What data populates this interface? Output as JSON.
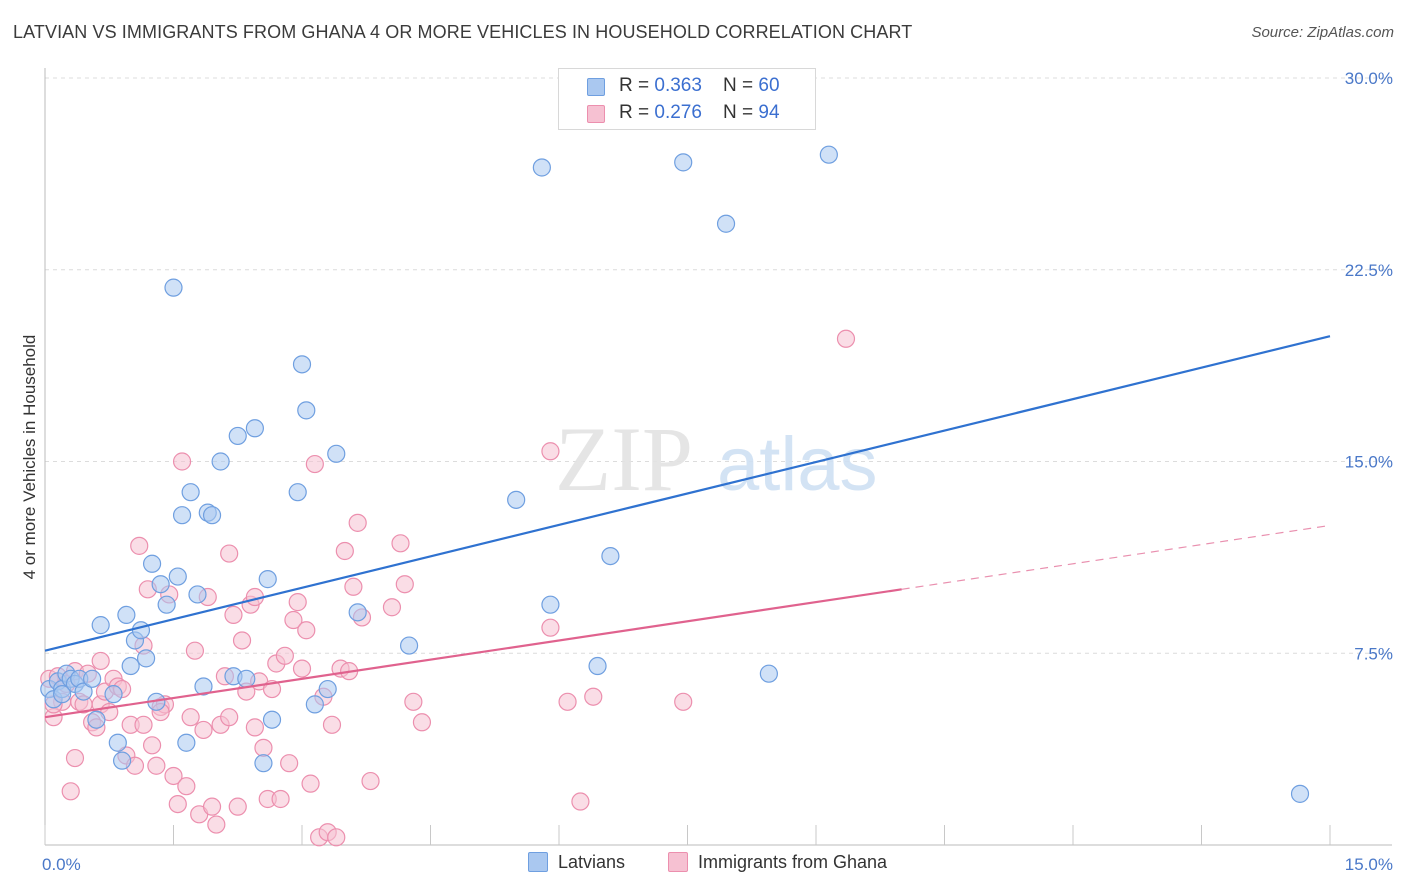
{
  "header": {
    "title": "LATVIAN VS IMMIGRANTS FROM GHANA 4 OR MORE VEHICLES IN HOUSEHOLD CORRELATION CHART",
    "source": "Source: ZipAtlas.com"
  },
  "legend_top": {
    "rows": [
      {
        "r_label": "R = ",
        "r_value": "0.363",
        "n_label": "N = ",
        "n_value": "60"
      },
      {
        "r_label": "R = ",
        "r_value": "0.276",
        "n_label": "N = ",
        "n_value": "94"
      }
    ]
  },
  "legend_bottom": {
    "items": [
      {
        "label": "Latvians"
      },
      {
        "label": "Immigrants from Ghana"
      }
    ]
  },
  "watermark": {
    "zip": "ZIP",
    "atlas": "atlas"
  },
  "colors": {
    "blue_fill": "#aac8f0",
    "blue_stroke": "#6f9fe0",
    "blue_line": "#2f72d0",
    "pink_fill": "#f6c1d2",
    "pink_stroke": "#ec8fae",
    "pink_line": "#e0628e",
    "grid": "#dcdcdc",
    "tick_label": "#4a78c8"
  },
  "chart_data": {
    "type": "scatter",
    "title": "LATVIAN VS IMMIGRANTS FROM GHANA 4 OR MORE VEHICLES IN HOUSEHOLD CORRELATION CHART",
    "xlabel": "",
    "ylabel": "4 or more Vehicles in Household",
    "xlim": [
      0,
      15
    ],
    "ylim": [
      0,
      30
    ],
    "x_ticks": [
      "0.0%",
      "15.0%"
    ],
    "y_ticks": [
      "7.5%",
      "15.0%",
      "22.5%",
      "30.0%"
    ],
    "y_tick_values": [
      7.5,
      15,
      22.5,
      30
    ],
    "grid": true,
    "legend_position": "top-center",
    "series": [
      {
        "name": "Latvians",
        "R": 0.363,
        "N": 60,
        "trend": {
          "x0": 0,
          "y0": 7.6,
          "x1": 15,
          "y1": 19.9
        },
        "points": [
          [
            0.05,
            6.1
          ],
          [
            0.1,
            5.7
          ],
          [
            0.15,
            6.4
          ],
          [
            0.2,
            6.1
          ],
          [
            0.25,
            6.7
          ],
          [
            0.3,
            6.5
          ],
          [
            0.35,
            6.3
          ],
          [
            0.4,
            6.5
          ],
          [
            0.45,
            6.0
          ],
          [
            0.55,
            6.5
          ],
          [
            0.6,
            4.9
          ],
          [
            0.65,
            8.6
          ],
          [
            0.8,
            5.9
          ],
          [
            0.85,
            4.0
          ],
          [
            0.9,
            3.3
          ],
          [
            0.95,
            9.0
          ],
          [
            1.0,
            7.0
          ],
          [
            1.05,
            8.0
          ],
          [
            1.12,
            8.4
          ],
          [
            1.18,
            7.3
          ],
          [
            1.25,
            11.0
          ],
          [
            1.3,
            5.6
          ],
          [
            1.35,
            10.2
          ],
          [
            1.42,
            9.4
          ],
          [
            1.5,
            21.8
          ],
          [
            1.55,
            10.5
          ],
          [
            1.6,
            12.9
          ],
          [
            1.65,
            4.0
          ],
          [
            1.7,
            13.8
          ],
          [
            1.78,
            9.8
          ],
          [
            1.85,
            6.2
          ],
          [
            1.9,
            13.0
          ],
          [
            1.95,
            12.9
          ],
          [
            2.05,
            15.0
          ],
          [
            2.2,
            6.6
          ],
          [
            2.25,
            16.0
          ],
          [
            2.35,
            6.5
          ],
          [
            2.45,
            16.3
          ],
          [
            2.55,
            3.2
          ],
          [
            2.6,
            10.4
          ],
          [
            2.65,
            4.9
          ],
          [
            2.95,
            13.8
          ],
          [
            3.0,
            18.8
          ],
          [
            3.05,
            17.0
          ],
          [
            3.15,
            5.5
          ],
          [
            3.3,
            6.1
          ],
          [
            3.4,
            15.3
          ],
          [
            3.65,
            9.1
          ],
          [
            4.25,
            7.8
          ],
          [
            5.5,
            13.5
          ],
          [
            5.8,
            26.5
          ],
          [
            5.9,
            9.4
          ],
          [
            6.45,
            7.0
          ],
          [
            6.6,
            11.3
          ],
          [
            7.45,
            26.7
          ],
          [
            7.95,
            24.3
          ],
          [
            8.45,
            6.7
          ],
          [
            9.15,
            27.0
          ],
          [
            14.65,
            2.0
          ],
          [
            0.2,
            5.9
          ]
        ]
      },
      {
        "name": "Immigrants from Ghana",
        "R": 0.276,
        "N": 94,
        "trend": {
          "x0": 0,
          "y0": 5.0,
          "x1": 10,
          "y1": 10.0
        },
        "trend_extension": {
          "x0": 10,
          "y0": 10.0,
          "x1": 15,
          "y1": 12.5
        },
        "points": [
          [
            0.05,
            6.5
          ],
          [
            0.1,
            5.0
          ],
          [
            0.15,
            6.6
          ],
          [
            0.2,
            5.6
          ],
          [
            0.25,
            6.3
          ],
          [
            0.3,
            2.1
          ],
          [
            0.35,
            6.8
          ],
          [
            0.4,
            5.6
          ],
          [
            0.45,
            5.5
          ],
          [
            0.5,
            6.7
          ],
          [
            0.55,
            4.8
          ],
          [
            0.6,
            4.6
          ],
          [
            0.65,
            5.5
          ],
          [
            0.7,
            6.0
          ],
          [
            0.75,
            5.2
          ],
          [
            0.8,
            6.5
          ],
          [
            0.85,
            6.2
          ],
          [
            0.9,
            6.1
          ],
          [
            0.95,
            3.5
          ],
          [
            1.0,
            4.7
          ],
          [
            1.05,
            3.1
          ],
          [
            1.1,
            11.7
          ],
          [
            1.15,
            4.7
          ],
          [
            1.2,
            10.0
          ],
          [
            1.25,
            3.9
          ],
          [
            1.3,
            3.1
          ],
          [
            1.35,
            5.4
          ],
          [
            1.4,
            5.5
          ],
          [
            1.45,
            9.8
          ],
          [
            1.5,
            2.7
          ],
          [
            1.55,
            1.6
          ],
          [
            1.6,
            15.0
          ],
          [
            1.65,
            2.3
          ],
          [
            1.7,
            5.0
          ],
          [
            1.75,
            7.6
          ],
          [
            1.8,
            1.2
          ],
          [
            1.85,
            4.5
          ],
          [
            1.9,
            9.7
          ],
          [
            1.95,
            1.5
          ],
          [
            2.0,
            0.8
          ],
          [
            2.05,
            4.7
          ],
          [
            2.1,
            6.6
          ],
          [
            2.15,
            11.4
          ],
          [
            2.2,
            9.0
          ],
          [
            2.25,
            1.5
          ],
          [
            2.3,
            8.0
          ],
          [
            2.35,
            6.0
          ],
          [
            2.4,
            9.4
          ],
          [
            2.45,
            9.7
          ],
          [
            2.5,
            6.4
          ],
          [
            2.55,
            3.8
          ],
          [
            2.6,
            1.8
          ],
          [
            2.65,
            6.1
          ],
          [
            2.7,
            7.1
          ],
          [
            2.75,
            1.8
          ],
          [
            2.8,
            7.4
          ],
          [
            2.85,
            3.2
          ],
          [
            2.9,
            8.8
          ],
          [
            2.95,
            9.5
          ],
          [
            3.0,
            6.9
          ],
          [
            3.05,
            8.4
          ],
          [
            3.1,
            2.4
          ],
          [
            3.15,
            14.9
          ],
          [
            3.2,
            0.3
          ],
          [
            3.25,
            5.8
          ],
          [
            3.3,
            0.5
          ],
          [
            3.35,
            4.7
          ],
          [
            3.4,
            0.3
          ],
          [
            3.45,
            6.9
          ],
          [
            3.5,
            11.5
          ],
          [
            3.55,
            6.8
          ],
          [
            3.6,
            10.1
          ],
          [
            3.65,
            12.6
          ],
          [
            3.7,
            8.9
          ],
          [
            3.8,
            2.5
          ],
          [
            4.05,
            9.3
          ],
          [
            4.15,
            11.8
          ],
          [
            4.2,
            10.2
          ],
          [
            4.3,
            5.6
          ],
          [
            4.4,
            4.8
          ],
          [
            5.9,
            8.5
          ],
          [
            5.9,
            15.4
          ],
          [
            6.1,
            5.6
          ],
          [
            6.25,
            1.7
          ],
          [
            6.4,
            5.8
          ],
          [
            7.45,
            5.6
          ],
          [
            9.35,
            19.8
          ],
          [
            0.65,
            7.2
          ],
          [
            1.15,
            7.8
          ],
          [
            1.35,
            5.2
          ],
          [
            2.15,
            5.0
          ],
          [
            2.45,
            4.6
          ],
          [
            0.1,
            5.5
          ],
          [
            0.35,
            3.4
          ]
        ]
      }
    ]
  }
}
